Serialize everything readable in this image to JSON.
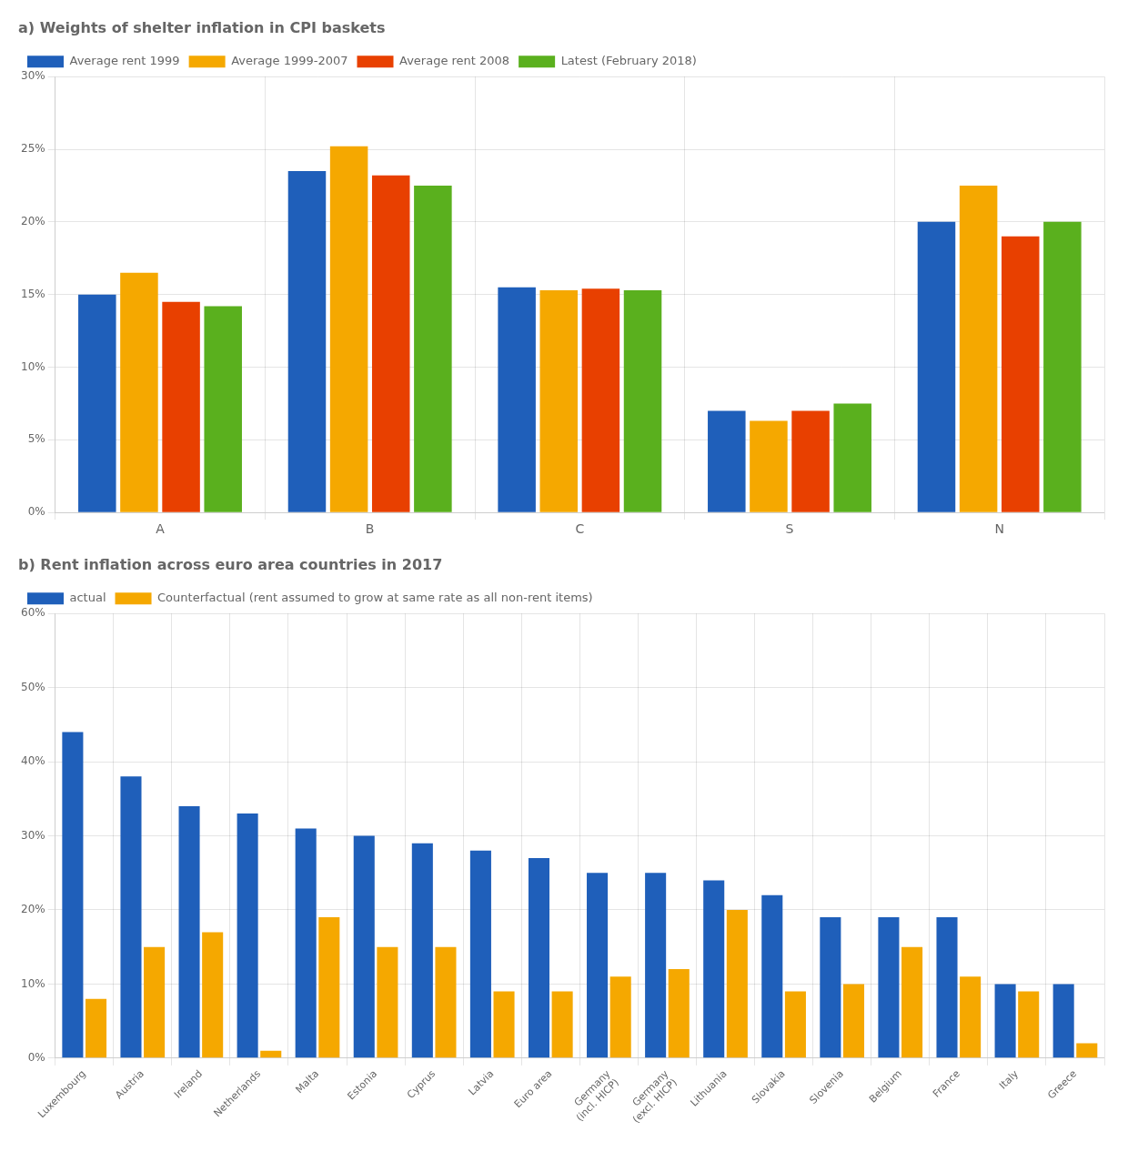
{
  "chart_data": [
    {
      "type": "bar",
      "title": "a) Weights of shelter inflation in CPI baskets",
      "categories": [
        "A",
        "B",
        "C",
        "S",
        "N"
      ],
      "series": [
        {
          "name": "Average rent 1999",
          "color": "#1f5fba",
          "values": [
            15.0,
            23.5,
            15.5,
            7.0,
            20.0
          ]
        },
        {
          "name": "Average 1999-2007",
          "color": "#f5a800",
          "values": [
            16.5,
            25.2,
            15.3,
            6.3,
            22.5
          ]
        },
        {
          "name": "Average rent 2008",
          "color": "#e84000",
          "values": [
            14.5,
            23.2,
            15.4,
            7.0,
            19.0
          ]
        },
        {
          "name": "Latest (February 2018)",
          "color": "#5ab01e",
          "values": [
            14.2,
            22.5,
            15.3,
            7.5,
            20.0
          ]
        }
      ],
      "ylim": [
        0,
        30
      ],
      "yticks": [
        {
          "value": 0,
          "label": "0%"
        },
        {
          "value": 5,
          "label": "5%"
        },
        {
          "value": 10,
          "label": "10%"
        },
        {
          "value": 15,
          "label": "15%"
        },
        {
          "value": 20,
          "label": "20%"
        },
        {
          "value": 25,
          "label": "25%"
        },
        {
          "value": 30,
          "label": "30%"
        }
      ],
      "grid": true,
      "legend": "top"
    },
    {
      "type": "bar",
      "title": "b) Rent inflation across euro area countries in 2017",
      "categories": [
        "Luxembourg",
        "Austria",
        "Ireland",
        "Netherlands",
        "Malta",
        "Estonia",
        "Cyprus",
        "Latvia",
        "Euro area",
        "Germany\n(incl. HICP)",
        "Germany\n(excl. HICP)",
        "Lithuania",
        "Slovakia",
        "Slovenia",
        "Belgium",
        "France",
        "Italy",
        "Greece"
      ],
      "series": [
        {
          "name": "actual",
          "color": "#1f5fba",
          "values": [
            44,
            38,
            34,
            33,
            31,
            30,
            29,
            28,
            27,
            25,
            25,
            24,
            22,
            19,
            19,
            19,
            10,
            10
          ]
        },
        {
          "name": "Counterfactual (rent assumed to grow at same rate as all non-rent items)",
          "color": "#f5a800",
          "values": [
            8,
            15,
            17,
            1,
            19,
            15,
            15,
            9,
            9,
            11,
            12,
            20,
            9,
            10,
            15,
            11,
            9,
            2
          ]
        }
      ],
      "ylim": [
        0,
        60
      ],
      "yticks": [
        {
          "value": 0,
          "label": "0%"
        },
        {
          "value": 10,
          "label": "10%"
        },
        {
          "value": 20,
          "label": "20%"
        },
        {
          "value": 30,
          "label": "30%"
        },
        {
          "value": 40,
          "label": "40%"
        },
        {
          "value": 50,
          "label": "50%"
        },
        {
          "value": 60,
          "label": "60%"
        }
      ],
      "grid": true,
      "legend": "top"
    }
  ]
}
